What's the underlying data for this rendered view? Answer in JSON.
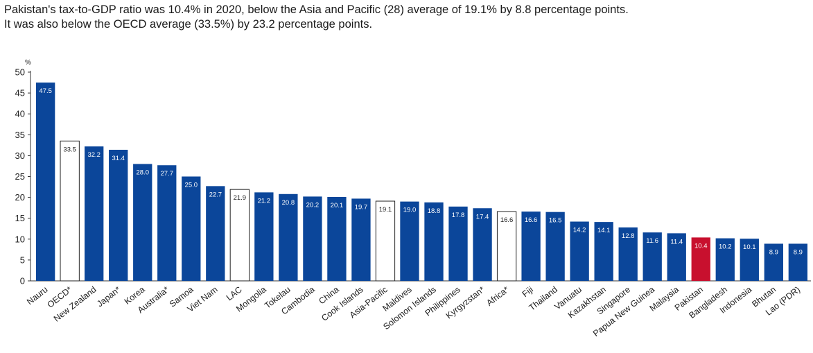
{
  "caption": {
    "line1": "Pakistan's tax-to-GDP ratio was 10.4% in 2020, below the Asia and Pacific (28) average of 19.1% by 8.8 percentage points.",
    "line2": "It was also below the OECD average (33.5%) by 23.2 percentage points."
  },
  "colors": {
    "primary": "#0b469a",
    "highlight": "#c8102e",
    "average_fill": "#ffffff",
    "average_stroke": "#222222"
  },
  "chart_data": {
    "type": "bar",
    "ylabel": "%",
    "ylim": [
      0,
      50
    ],
    "yticks": [
      0,
      5,
      10,
      15,
      20,
      25,
      30,
      35,
      40,
      45,
      50
    ],
    "grid": false,
    "categories": [
      "Nauru",
      "OECD*",
      "New Zealand",
      "Japan*",
      "Korea",
      "Australia*",
      "Samoa",
      "Viet Nam",
      "LAC",
      "Mongolia",
      "Tokelau",
      "Cambodia",
      "China",
      "Cook Islands",
      "Asia-Pacific",
      "Maldives",
      "Solomon Islands",
      "Philippines",
      "Kyrgyzstan*",
      "Africa*",
      "Fiji",
      "Thailand",
      "Vanuatu",
      "Kazakhstan",
      "Singapore",
      "Papua New Guinea",
      "Malaysia",
      "Pakistan",
      "Bangladesh",
      "Indonesia",
      "Bhutan",
      "Lao (PDR)"
    ],
    "values": [
      47.5,
      33.5,
      32.2,
      31.4,
      28.0,
      27.7,
      25.0,
      22.7,
      21.9,
      21.2,
      20.8,
      20.2,
      20.1,
      19.7,
      19.1,
      19.0,
      18.8,
      17.8,
      17.4,
      16.6,
      16.6,
      16.5,
      14.2,
      14.1,
      12.8,
      11.6,
      11.4,
      10.4,
      10.2,
      10.1,
      8.9,
      8.9
    ],
    "value_labels": [
      "47.5",
      "33.5",
      "32.2",
      "31.4",
      "28.0",
      "27.7",
      "25.0",
      "22.7",
      "21.9",
      "21.2",
      "20.8",
      "20.2",
      "20.1",
      "19.7",
      "19.1",
      "19.0",
      "18.8",
      "17.8",
      "17.4",
      "16.6",
      "16.6",
      "16.5",
      "14.2",
      "14.1",
      "12.8",
      "11.6",
      "11.4",
      "10.4",
      "10.2",
      "10.1",
      "8.9",
      "8.9"
    ],
    "bar_style": [
      "primary",
      "average",
      "primary",
      "primary",
      "primary",
      "primary",
      "primary",
      "primary",
      "average",
      "primary",
      "primary",
      "primary",
      "primary",
      "primary",
      "average",
      "primary",
      "primary",
      "primary",
      "primary",
      "average",
      "primary",
      "primary",
      "primary",
      "primary",
      "primary",
      "primary",
      "primary",
      "highlight",
      "primary",
      "primary",
      "primary",
      "primary"
    ]
  }
}
